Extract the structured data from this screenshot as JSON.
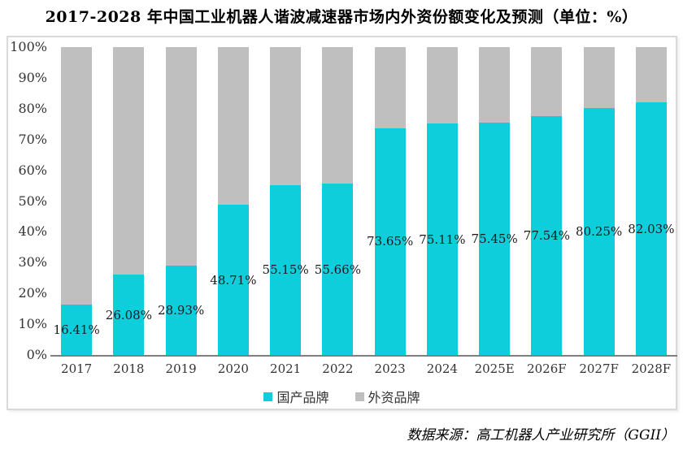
{
  "title": "2017-2028 年中国工业机器人谐波减速器市场内外资份额变化及预测（单位：%）",
  "source": "数据来源：高工机器人产业研究所（GGII）",
  "colors": {
    "domestic": "#0FCEDB",
    "foreign": "#BFBFBF",
    "box_border": "#D9D9D9",
    "axis_line": "#7F7F7F",
    "text": "#333333"
  },
  "chart_data": {
    "type": "bar",
    "stacked": true,
    "title": "2017-2028 年中国工业机器人谐波减速器市场内外资份额变化及预测（单位：%）",
    "categories": [
      "2017",
      "2018",
      "2019",
      "2020",
      "2021",
      "2022",
      "2023",
      "2024",
      "2025E",
      "2026F",
      "2027F",
      "2028F"
    ],
    "series": [
      {
        "name": "国产品牌",
        "color": "#0FCEDB",
        "values": [
          16.41,
          26.08,
          28.93,
          48.71,
          55.15,
          55.66,
          73.65,
          75.11,
          75.45,
          77.54,
          80.25,
          82.03
        ]
      },
      {
        "name": "外资品牌",
        "color": "#BFBFBF",
        "values": [
          83.59,
          73.92,
          71.07,
          51.29,
          44.85,
          44.34,
          26.35,
          24.89,
          24.55,
          22.46,
          19.75,
          17.97
        ]
      }
    ],
    "data_labels": [
      "16.41%",
      "26.08%",
      "28.93%",
      "48.71%",
      "55.15%",
      "55.66%",
      "73.65%",
      "75.11%",
      "75.45%",
      "77.54%",
      "80.25%",
      "82.03%"
    ],
    "y_ticks": [
      "0%",
      "10%",
      "20%",
      "30%",
      "40%",
      "50%",
      "60%",
      "70%",
      "80%",
      "90%",
      "100%"
    ],
    "ylim": [
      0,
      100
    ],
    "xlabel": "",
    "ylabel": "",
    "grid": false,
    "legend": [
      "国产品牌",
      "外资品牌"
    ],
    "legend_position": "bottom"
  }
}
